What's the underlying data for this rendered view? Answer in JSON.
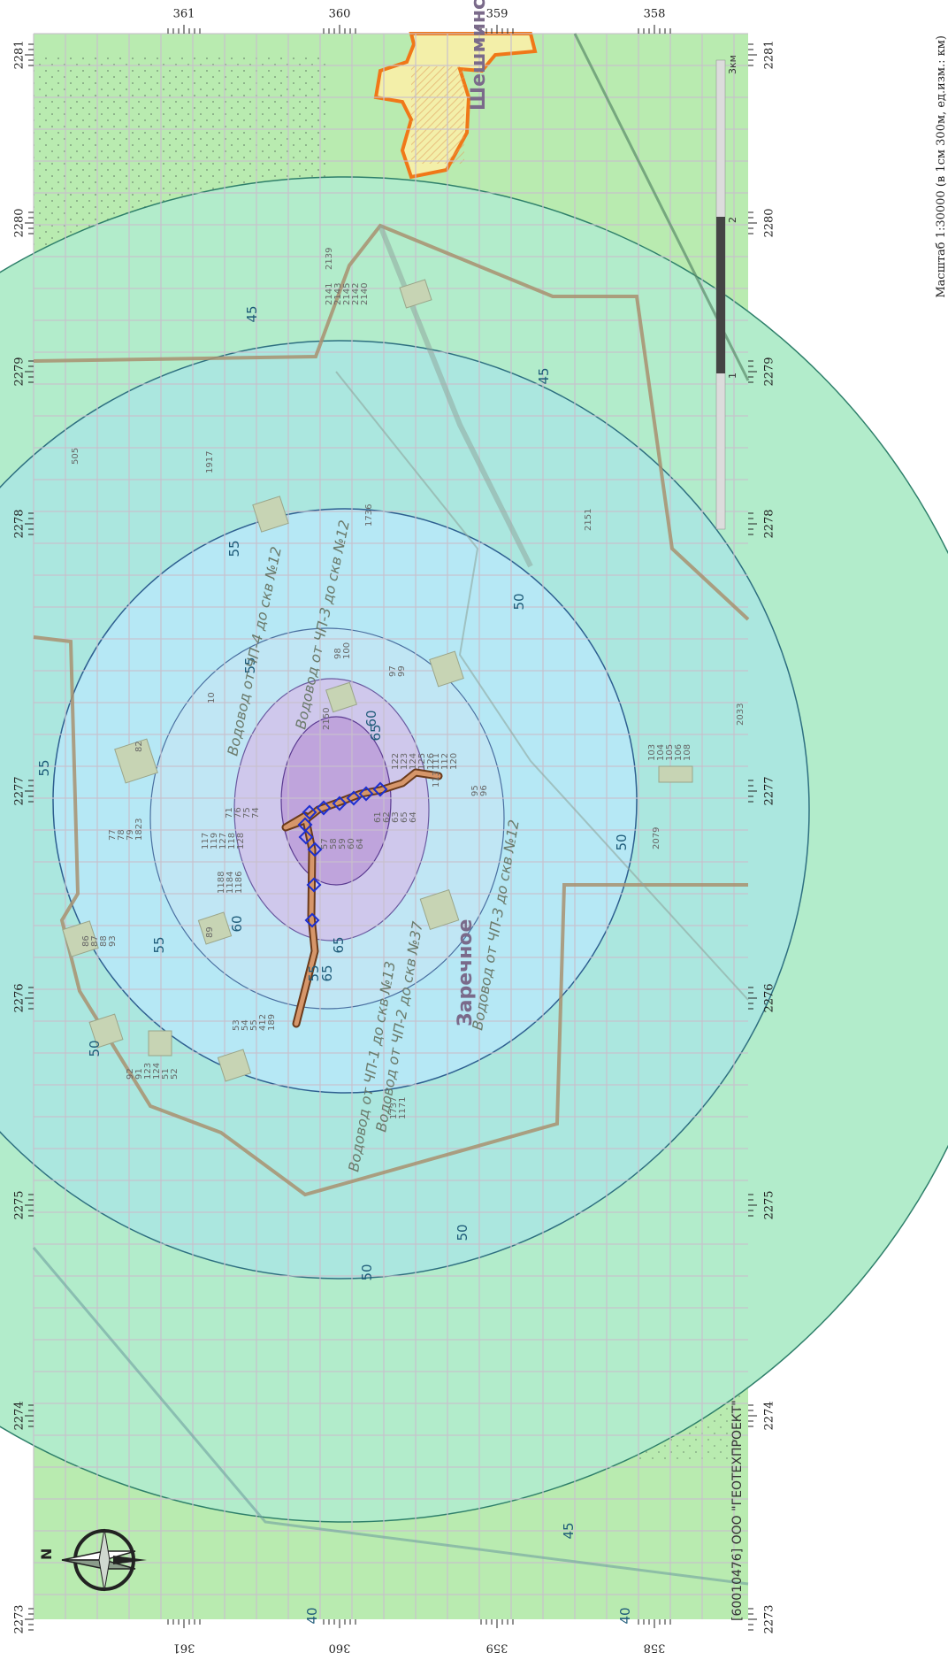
{
  "map": {
    "x_ticks": [
      "2273",
      "2274",
      "2275",
      "2276",
      "2277",
      "2278",
      "2279",
      "2280",
      "2281"
    ],
    "y_ticks": [
      "361",
      "360",
      "359",
      "358"
    ],
    "contours": [
      {
        "level": "40",
        "labels": [
          "40",
          "40"
        ]
      },
      {
        "level": "45",
        "labels": [
          "45",
          "45",
          "45"
        ]
      },
      {
        "level": "50",
        "labels": [
          "50",
          "50",
          "50",
          "50",
          "50"
        ]
      },
      {
        "level": "55",
        "labels": [
          "55",
          "55",
          "55",
          "55",
          "55"
        ]
      },
      {
        "level": "60",
        "labels": [
          "60",
          "60"
        ]
      },
      {
        "level": "65",
        "labels": [
          "65",
          "65",
          "65"
        ]
      }
    ],
    "place_names": [
      "Заречное",
      "Шешминск"
    ],
    "road_labels": [
      "Водовод от ЧП-1 до скв №13",
      "Водовод от ЧП-2 до скв №37",
      "Водовод от ЧП-3 до скв №12",
      "Водовод от ЧП-4 до скв №12",
      "Водовод от ЧП-3 до скв №12"
    ],
    "object_labels": [
      "2139",
      "2141",
      "2143",
      "2145",
      "2142",
      "2140",
      "1917",
      "505",
      "1736",
      "2151",
      "2033",
      "98",
      "100",
      "97",
      "99",
      "2150",
      "122",
      "123",
      "124",
      "125",
      "126",
      "111",
      "112",
      "120",
      "113",
      "103",
      "104",
      "105",
      "106",
      "108",
      "2079",
      "95",
      "96",
      "61",
      "62",
      "63",
      "65",
      "64",
      "57",
      "58",
      "59",
      "60",
      "64",
      "117",
      "119",
      "127",
      "118",
      "128",
      "1188",
      "1184",
      "1186",
      "71",
      "76",
      "75",
      "74",
      "77",
      "78",
      "79",
      "1823",
      "86",
      "87",
      "88",
      "93",
      "92",
      "91",
      "123",
      "124",
      "51",
      "52",
      "53",
      "54",
      "55",
      "412",
      "189",
      "1737",
      "1171",
      "10",
      "89",
      "82"
    ],
    "footer": "[60010476] ООО \"ГЕОТЕХПРОЕКТ\"",
    "compass_letter": "N",
    "scale": {
      "caption": "Масштаб 1:30000 (в 1см 300м, ед.изм.: км)",
      "ticks": [
        "1",
        "2",
        "3км"
      ]
    },
    "colors": {
      "base_map": "#b9ebb0",
      "zone_45": "#b2eccb",
      "zone_50": "#abe7df",
      "zone_55": "#b6e8f5",
      "zone_60": "#cfc8ec",
      "zone_65": "#bfa4dc",
      "pipeline": "#b0663a",
      "markers": "#1c2fd0",
      "settlement_border": "#f07818",
      "grid": "#c8c0cc"
    }
  }
}
